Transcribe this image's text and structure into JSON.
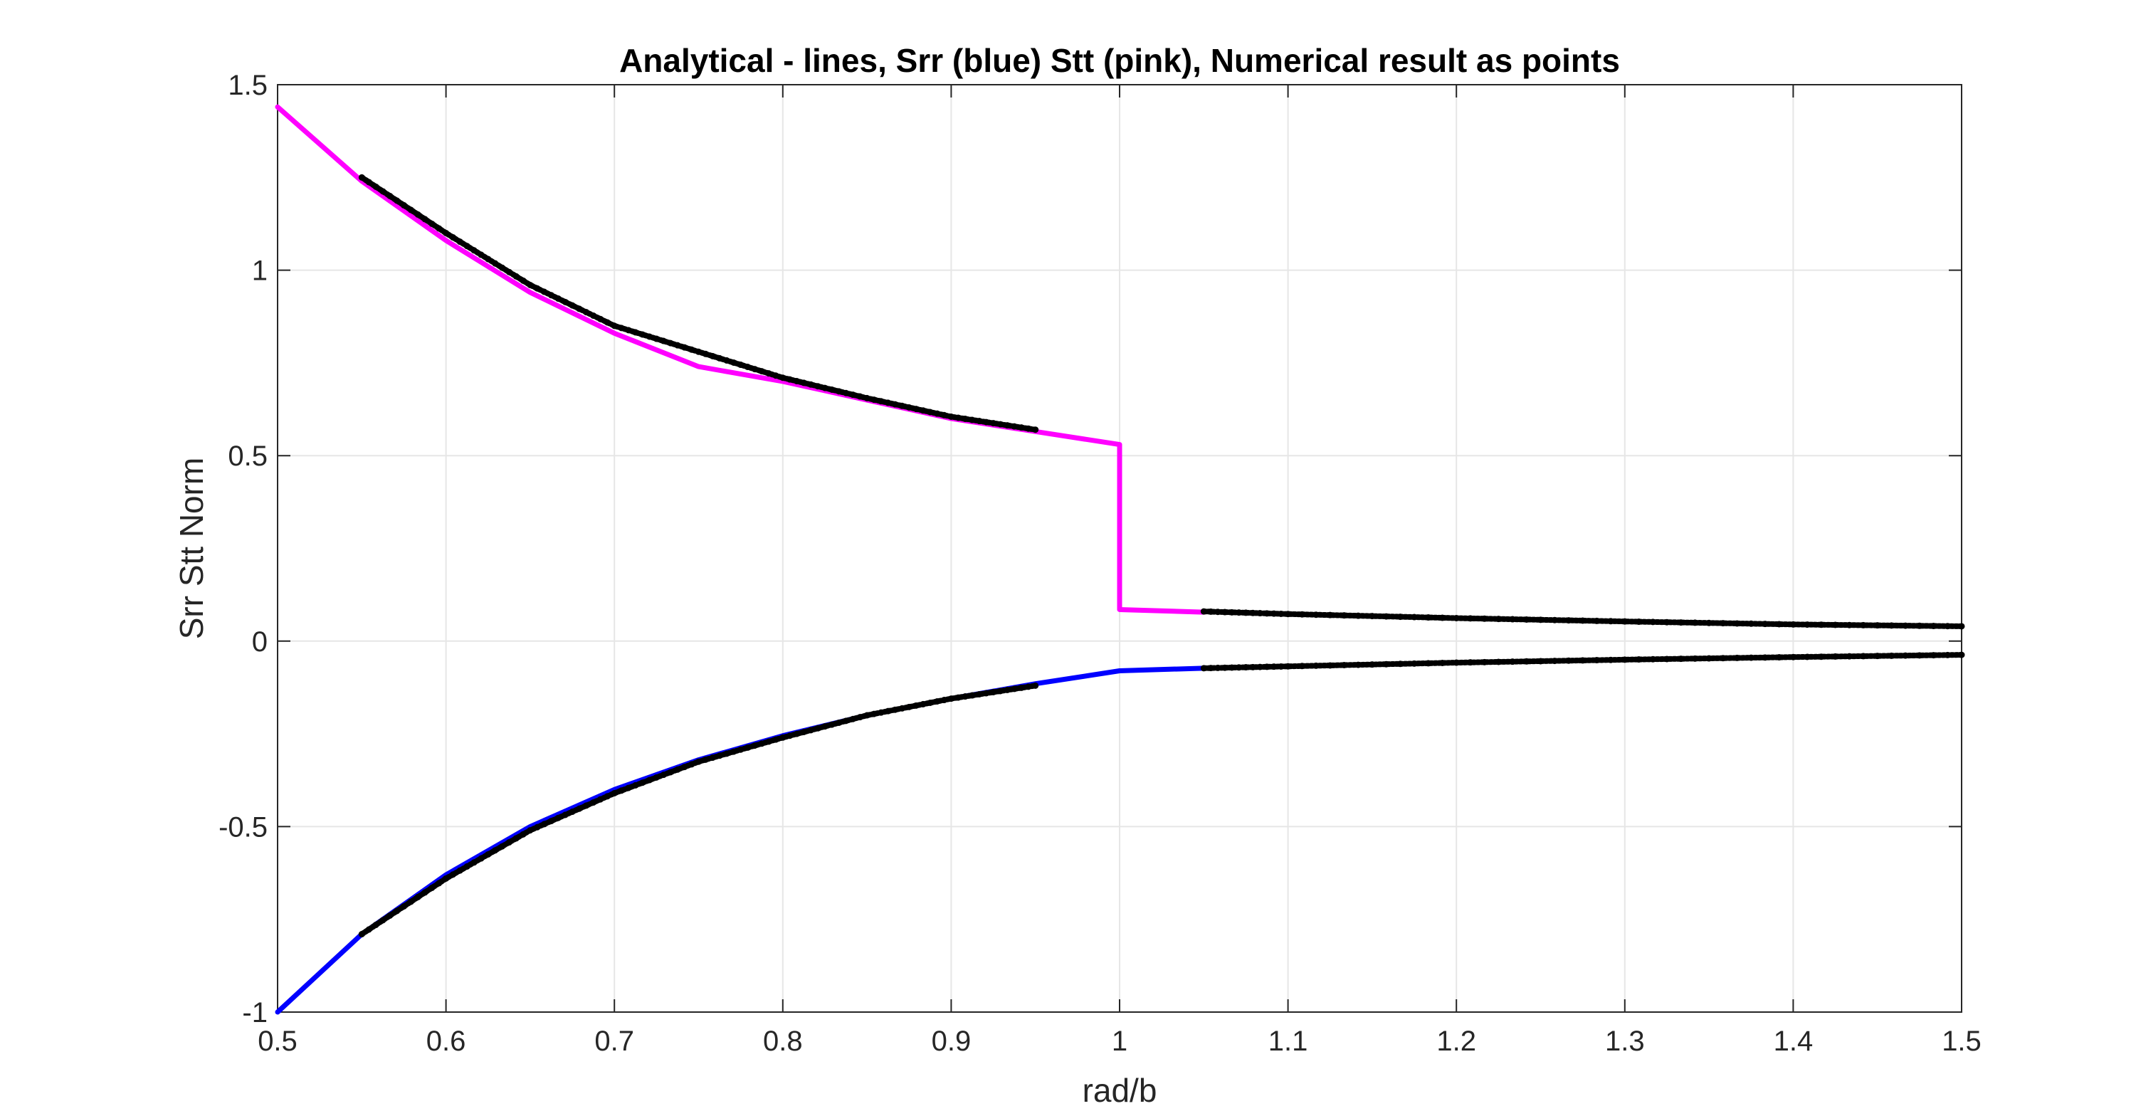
{
  "chart_data": {
    "type": "line",
    "title": "Analytical - lines, Srr (blue) Stt (pink), Numerical result as points",
    "xlabel": "rad/b",
    "ylabel": "Srr Stt Norm",
    "xlim": [
      0.5,
      1.5
    ],
    "ylim": [
      -1,
      1.5
    ],
    "xticks": [
      0.5,
      0.6,
      0.7,
      0.8,
      0.9,
      1,
      1.1,
      1.2,
      1.3,
      1.4,
      1.5
    ],
    "xtick_labels": [
      "0.5",
      "0.6",
      "0.7",
      "0.8",
      "0.9",
      "1",
      "1.1",
      "1.2",
      "1.3",
      "1.4",
      "1.5"
    ],
    "yticks": [
      -1,
      -0.5,
      0,
      0.5,
      1,
      1.5
    ],
    "ytick_labels": [
      "-1",
      "-0.5",
      "0",
      "0.5",
      "1",
      "1.5"
    ],
    "grid": true,
    "series": [
      {
        "kind": "line",
        "color": "#0000ff",
        "x": [
          0.5,
          0.55,
          0.6,
          0.65,
          0.7,
          0.75,
          0.8,
          0.85,
          0.9,
          0.95,
          1.0,
          1.05
        ],
        "y": [
          -1.0,
          -0.79,
          -0.63,
          -0.5,
          -0.4,
          -0.32,
          -0.255,
          -0.2,
          -0.155,
          -0.115,
          -0.08,
          -0.073
        ]
      },
      {
        "kind": "line",
        "color": "#ff00ff",
        "x": [
          0.5,
          0.55,
          0.6,
          0.65,
          0.7,
          0.75,
          0.8,
          0.85,
          0.9,
          0.95,
          1.0,
          1.0,
          1.05
        ],
        "y": [
          1.44,
          1.24,
          1.08,
          0.94,
          0.83,
          0.74,
          0.7,
          0.65,
          0.6,
          0.565,
          0.53,
          0.085,
          0.078
        ]
      },
      {
        "kind": "points",
        "color": "#000000",
        "segments": [
          {
            "x": [
              0.55,
              0.6,
              0.65,
              0.7,
              0.75,
              0.8,
              0.85,
              0.9,
              0.95
            ],
            "y": [
              1.25,
              1.1,
              0.96,
              0.85,
              0.78,
              0.71,
              0.655,
              0.605,
              0.57
            ]
          },
          {
            "x": [
              1.05,
              1.1,
              1.2,
              1.3,
              1.4,
              1.5
            ],
            "y": [
              0.08,
              0.073,
              0.062,
              0.053,
              0.045,
              0.04
            ]
          },
          {
            "x": [
              0.55,
              0.6,
              0.65,
              0.7,
              0.75,
              0.8,
              0.85,
              0.9,
              0.95
            ],
            "y": [
              -0.79,
              -0.64,
              -0.51,
              -0.41,
              -0.325,
              -0.26,
              -0.2,
              -0.155,
              -0.12
            ]
          },
          {
            "x": [
              1.05,
              1.1,
              1.2,
              1.3,
              1.4,
              1.5
            ],
            "y": [
              -0.073,
              -0.068,
              -0.058,
              -0.05,
              -0.043,
              -0.037
            ]
          }
        ]
      }
    ]
  }
}
